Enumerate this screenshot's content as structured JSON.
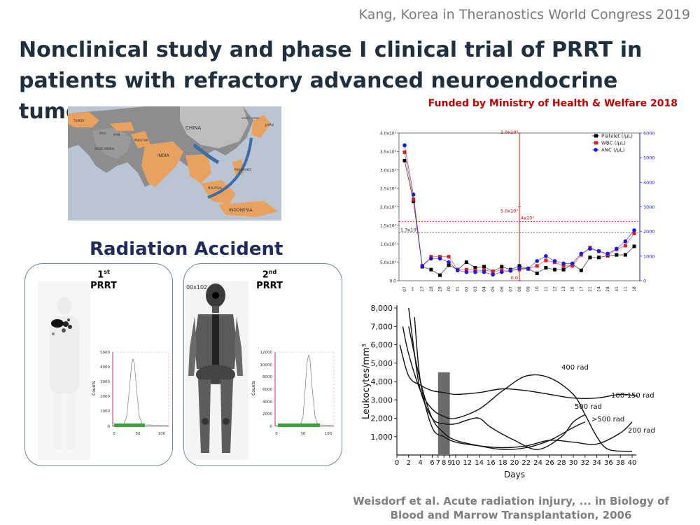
{
  "header": {
    "credit": "Kang, Korea in Theranostics World Congress 2019"
  },
  "title": {
    "line1": "Nonclinical study and phase I clinical trial of PRRT in",
    "line2": "patients with refractory advanced neuroendocrine tumor"
  },
  "funding": "Funded by Ministry of Health & Welfare 2018",
  "map": {
    "labels": [
      "CHINA",
      "INDIA",
      "IRAN",
      "IRAQ",
      "TURKEY",
      "SAUDI ARABIA",
      "JAPAN",
      "PHILIPPINES",
      "MALAYSIA",
      "INDONESIA",
      "NORTH KOREA",
      "PAKISTAN"
    ]
  },
  "accident": {
    "title": "Radiation Accident",
    "first": {
      "ordinal": "1",
      "suffix": "st",
      "label": "PRRT",
      "counts_label": "Counts",
      "yticks": [
        "5000",
        "4000",
        "3000",
        "2000",
        "1000",
        "0"
      ],
      "xticks": [
        "0",
        "50",
        "100"
      ]
    },
    "second": {
      "ordinal": "2",
      "suffix": "nd",
      "label": "PRRT",
      "counts_label": "Counts",
      "scan_label": "00x102",
      "yticks": [
        "12000",
        "10000",
        "8000",
        "6000",
        "4000",
        "2000",
        "0"
      ],
      "xticks": [
        "0",
        "50",
        "100"
      ]
    }
  },
  "chart_data": [
    {
      "type": "line",
      "legend": [
        "Platelet (/μL)",
        "WBC (/μL)",
        "ANC (/μL)"
      ],
      "legend_position": "top-right",
      "colors": {
        "platelet": "#000000",
        "wbc": "#e02020",
        "anc": "#1a1adc",
        "secondary_axis": "#1a1adc",
        "guide": "#c00000"
      },
      "left_ticks": [
        "4.0x10⁵",
        "3.5x10⁵",
        "3.0x10⁵",
        "2.5x10⁵",
        "2.0x10⁵",
        "1.5x10⁵",
        "1.0x10⁵",
        "5.0x10⁴",
        "0.0"
      ],
      "right_ticks": [
        "6000",
        "5000",
        "4000",
        "3000",
        "2000",
        "1000",
        "0"
      ],
      "mid_axis_labels": [
        "1.0x10⁴",
        "5.0x10³",
        "0.0"
      ],
      "annotations": {
        "threshold_left": "1.3x10⁵",
        "threshold_mid": "4x10³"
      },
      "x_labels": [
        "07",
        "**",
        "27",
        "28",
        "29",
        "30",
        "31",
        "02",
        "03",
        "04",
        "05",
        "06",
        "07",
        "08",
        "09",
        "10",
        "11",
        "12",
        "13",
        "16",
        "17",
        "21",
        "24",
        "28",
        "31",
        "11",
        "18"
      ],
      "ylim": [
        0,
        400000
      ],
      "y2lim": [
        0,
        6000
      ],
      "series": [
        {
          "name": "Platelet (/μL)",
          "values": [
            325000,
            215000,
            38000,
            30000,
            15000,
            42000,
            30000,
            50000,
            35000,
            38000,
            25000,
            38000,
            30000,
            40000,
            32000,
            20000,
            35000,
            30000,
            30000,
            45000,
            28000,
            63000,
            63000,
            68000,
            70000,
            70000,
            93000
          ]
        },
        {
          "name": "WBC (/μL)",
          "values": [
            348000,
            220000,
            40000,
            65000,
            65000,
            65000,
            30000,
            30000,
            28000,
            28000,
            25000,
            28000,
            28000,
            30000,
            33000,
            40000,
            55000,
            50000,
            40000,
            40000,
            70000,
            90000,
            80000,
            70000,
            85000,
            95000,
            128000
          ]
        },
        {
          "name": "ANC (/μL)",
          "values": [
            5500,
            3500,
            600,
            900,
            900,
            750,
            420,
            350,
            350,
            350,
            250,
            350,
            400,
            500,
            500,
            800,
            1000,
            800,
            700,
            700,
            1100,
            1300,
            1200,
            1100,
            1300,
            1600,
            2050
          ]
        }
      ]
    },
    {
      "type": "line",
      "ylabel": "Leukocytes/mm³",
      "xlabel": "Days",
      "yticks": [
        "8,000",
        "7,000",
        "6,000",
        "5,000",
        "4,000",
        "3,000",
        "2,000",
        "1,000"
      ],
      "xticks": [
        "0",
        "2",
        "4",
        "6",
        "7",
        "8",
        "9",
        "10",
        "12",
        "14",
        "16",
        "18",
        "20",
        "22",
        "24",
        "26",
        "28",
        "30",
        "32",
        "34",
        "36",
        "38",
        "40"
      ],
      "xlim": [
        0,
        40
      ],
      "ylim": [
        0,
        8000
      ],
      "shaded_band": [
        7,
        9
      ],
      "series": [
        {
          "name": "100-150 rad",
          "x": [
            0.5,
            2,
            4,
            6,
            8,
            10,
            14,
            18,
            22,
            26,
            30,
            34,
            38,
            41
          ],
          "y": [
            6000,
            4300,
            3800,
            3500,
            3400,
            3300,
            3400,
            3600,
            3500,
            3300,
            3100,
            3100,
            3300,
            3200
          ]
        },
        {
          "name": "400 rad",
          "x": [
            1,
            2,
            4,
            6,
            8,
            10,
            14,
            18,
            22,
            26,
            30,
            32,
            34,
            36,
            40
          ],
          "y": [
            7000,
            5500,
            3500,
            2500,
            2100,
            2000,
            2500,
            3500,
            4300,
            4200,
            3300,
            2200,
            1000,
            300,
            200
          ]
        },
        {
          "name": "500 rad",
          "x": [
            2,
            3,
            4,
            6,
            8,
            10,
            12,
            14,
            16,
            20,
            24,
            28,
            30,
            32
          ],
          "y": [
            8000,
            5500,
            3500,
            2000,
            1700,
            1700,
            1900,
            2000,
            1500,
            800,
            300,
            1000,
            1800,
            2200
          ]
        },
        {
          "name": ">500 rad",
          "x": [
            2,
            4,
            6,
            8,
            10,
            14,
            18,
            22,
            26,
            30,
            32
          ],
          "y": [
            7000,
            4000,
            2000,
            1200,
            800,
            500,
            300,
            400,
            800,
            1500,
            1800
          ]
        },
        {
          "name": "200 rad",
          "x": [
            3,
            4,
            6,
            8,
            10,
            14,
            18,
            22,
            26,
            30,
            34,
            38,
            40
          ],
          "y": [
            7500,
            4000,
            1500,
            1000,
            700,
            500,
            400,
            500,
            800,
            700,
            600,
            1200,
            1800
          ]
        }
      ],
      "curve_labels": [
        "400 rad",
        "100-150 rad",
        "500 rad",
        ">500 rad",
        "200 rad"
      ]
    }
  ],
  "citation": {
    "line1": "Weisdorf et al. Acute radiation injury, ... in Biology of",
    "line2": "Blood and Marrow Transplantation, 2006"
  }
}
